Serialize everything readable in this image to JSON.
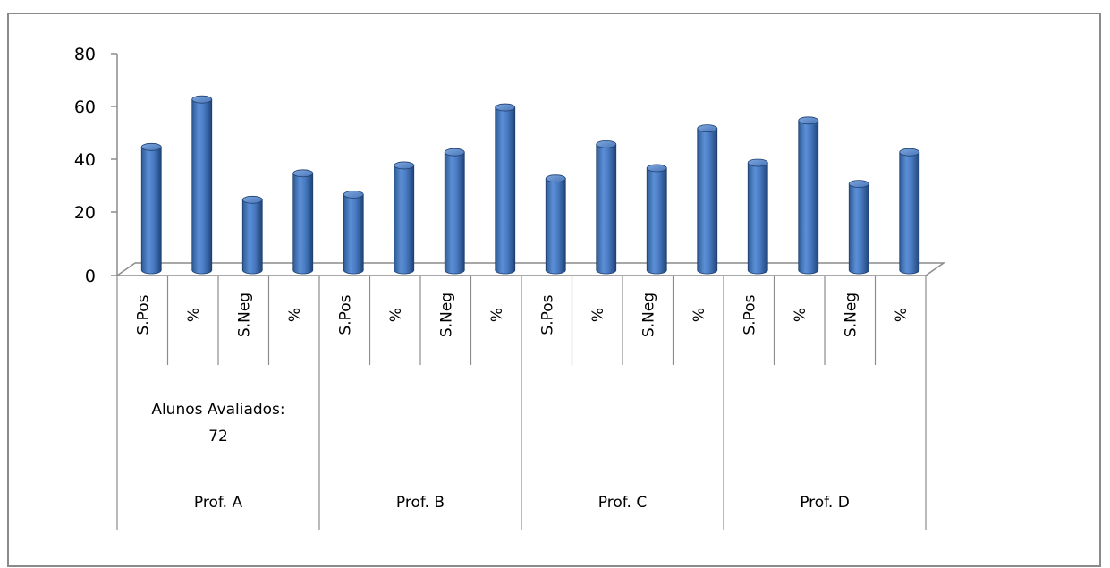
{
  "chart_data": {
    "type": "bar",
    "style": "3d-cylinder",
    "bar_color": "#4F81BD",
    "ylim": [
      0,
      80
    ],
    "yticks": [
      0,
      20,
      40,
      60,
      80
    ],
    "grid": false,
    "legend": "none",
    "categories": [
      "S.Pos",
      "%",
      "S.Neg",
      "%",
      "S.Pos",
      "%",
      "S.Neg",
      "%",
      "S.Pos",
      "%",
      "S.Neg",
      "%",
      "S.Pos",
      "%",
      "S.Neg",
      "%"
    ],
    "values": [
      46,
      64,
      26,
      36,
      28,
      39,
      44,
      61,
      34,
      47,
      38,
      53,
      40,
      56,
      32,
      44
    ],
    "groups": [
      {
        "label": "Prof. A",
        "note_lines": [
          "Alunos Avaliados:",
          "72"
        ]
      },
      {
        "label": "Prof. B",
        "note_lines": []
      },
      {
        "label": "Prof. C",
        "note_lines": []
      },
      {
        "label": "Prof. D",
        "note_lines": []
      }
    ]
  }
}
